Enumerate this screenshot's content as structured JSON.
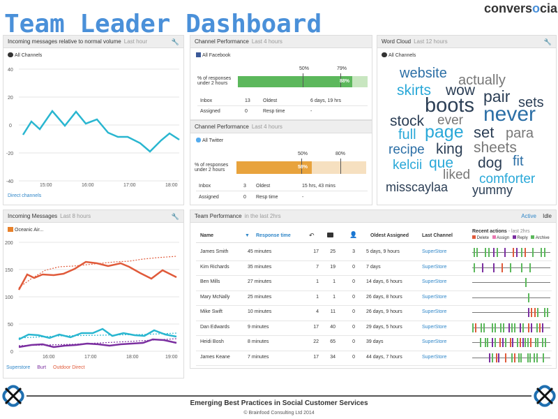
{
  "header": {
    "title": "Team Leader Dashboard",
    "logo_text_a": "convers",
    "logo_text_o": "o",
    "logo_text_b": "cial"
  },
  "incoming_rel": {
    "title": "Incoming messages relative to normal volume",
    "range": "Last hour",
    "channel": "All Channels",
    "y_ticks": [
      "40",
      "20",
      "0",
      "-20",
      "-40"
    ],
    "x_ticks": [
      "15:00",
      "16:00",
      "17:00",
      "18:00"
    ],
    "footer": "Direct channels",
    "color": "#29b6d0"
  },
  "cp_facebook": {
    "title": "Channel Performance",
    "range": "Last 4 hours",
    "channel": "All Facebook",
    "metric_label_1": "% of responses",
    "metric_label_2": "under 2 hours",
    "marker_a": "50%",
    "marker_b": "79%",
    "value_label": "88%",
    "value": 0.88,
    "bar_color": "#5cb85c",
    "inbox_label": "Inbox",
    "inbox_value": "13",
    "oldest_label": "Oldest",
    "oldest_value": "6 days, 19 hrs",
    "assigned_label": "Assigned",
    "assigned_value": "0",
    "resp_label": "Resp time",
    "resp_value": "-"
  },
  "cp_twitter": {
    "title": "Channel Performance",
    "range": "Last 4 hours",
    "channel": "All Twitter",
    "metric_label_1": "% of responses",
    "metric_label_2": "under 2 hours",
    "marker_a": "50%",
    "marker_b": "80%",
    "value_label": "58%",
    "value": 0.58,
    "bar_color": "#e8a33d",
    "inbox_label": "Inbox",
    "inbox_value": "3",
    "oldest_label": "Oldest",
    "oldest_value": "15 hrs, 43 mins",
    "assigned_label": "Assigned",
    "assigned_value": "0",
    "resp_label": "Resp time",
    "resp_value": "-"
  },
  "word_cloud": {
    "title": "Word Cloud",
    "range": "Last 12 hours",
    "channel": "All Channels",
    "words": [
      "website",
      "actually",
      "skirts",
      "wow",
      "pair",
      "boots",
      "sets",
      "never",
      "stock",
      "ever",
      "full",
      "page",
      "set",
      "para",
      "recipe",
      "king",
      "sheets",
      "kelcii",
      "que",
      "dog",
      "fit",
      "liked",
      "comforter",
      "misscaylaa",
      "yummy"
    ]
  },
  "incoming_msgs": {
    "title": "Incoming Messages",
    "range": "Last 8 hours",
    "channel": "Oceanic Air...",
    "y_ticks": [
      "200",
      "150",
      "100",
      "50",
      "0"
    ],
    "x_ticks": [
      "16:00",
      "17:00",
      "18:00",
      "19:00"
    ],
    "legend": [
      "Superstore",
      "Burt",
      "Outdoor Direct"
    ],
    "colors": {
      "superstore": "#29b6d0",
      "burt": "#7b2fa0",
      "outdoor": "#e05a3a"
    }
  },
  "team": {
    "title": "Team Performance",
    "range": "in the last 2hrs",
    "active": "Active",
    "idle": "Idle",
    "cols": {
      "name": "Name",
      "resp": "Response time",
      "oldest": "Oldest Assigned",
      "channel": "Last Channel",
      "recent": "Recent actions",
      "recent_sub": "- last 2hrs"
    },
    "legend": [
      "Delete",
      "Assign",
      "Reply",
      "Archive"
    ],
    "rows": [
      {
        "name": "James Smith",
        "resp": "45 minutes",
        "a": "17",
        "b": "25",
        "c": "3",
        "oldest": "5 days, 9 hours",
        "channel": "SuperStore"
      },
      {
        "name": "Kim Richards",
        "resp": "35 minutes",
        "a": "7",
        "b": "19",
        "c": "0",
        "oldest": "7 days",
        "channel": "SuperStore"
      },
      {
        "name": "Ben Mills",
        "resp": "27 minutes",
        "a": "1",
        "b": "1",
        "c": "0",
        "oldest": "14 days, 6 hours",
        "channel": "SuperStore"
      },
      {
        "name": "Mary McNally",
        "resp": "25 minutes",
        "a": "1",
        "b": "1",
        "c": "0",
        "oldest": "26 days, 8 hours",
        "channel": "SuperStore"
      },
      {
        "name": "Mike Swift",
        "resp": "10 minutes",
        "a": "4",
        "b": "11",
        "c": "0",
        "oldest": "26 days, 9 hours",
        "channel": "SuperStore"
      },
      {
        "name": "Dan Edwards",
        "resp": "9 minutes",
        "a": "17",
        "b": "40",
        "c": "0",
        "oldest": "29 days, 5 hours",
        "channel": "SuperStore"
      },
      {
        "name": "Heidi Bosh",
        "resp": "8 minutes",
        "a": "22",
        "b": "65",
        "c": "0",
        "oldest": "39 days",
        "channel": "SuperStore"
      },
      {
        "name": "James Keane",
        "resp": "7 minutes",
        "a": "17",
        "b": "34",
        "c": "0",
        "oldest": "44 days, 7 hours",
        "channel": "SuperStore"
      }
    ]
  },
  "footer": {
    "main": "Emerging Best Practices in Social Customer Services",
    "copy": "© Brainfood Consulting Ltd 2014"
  }
}
